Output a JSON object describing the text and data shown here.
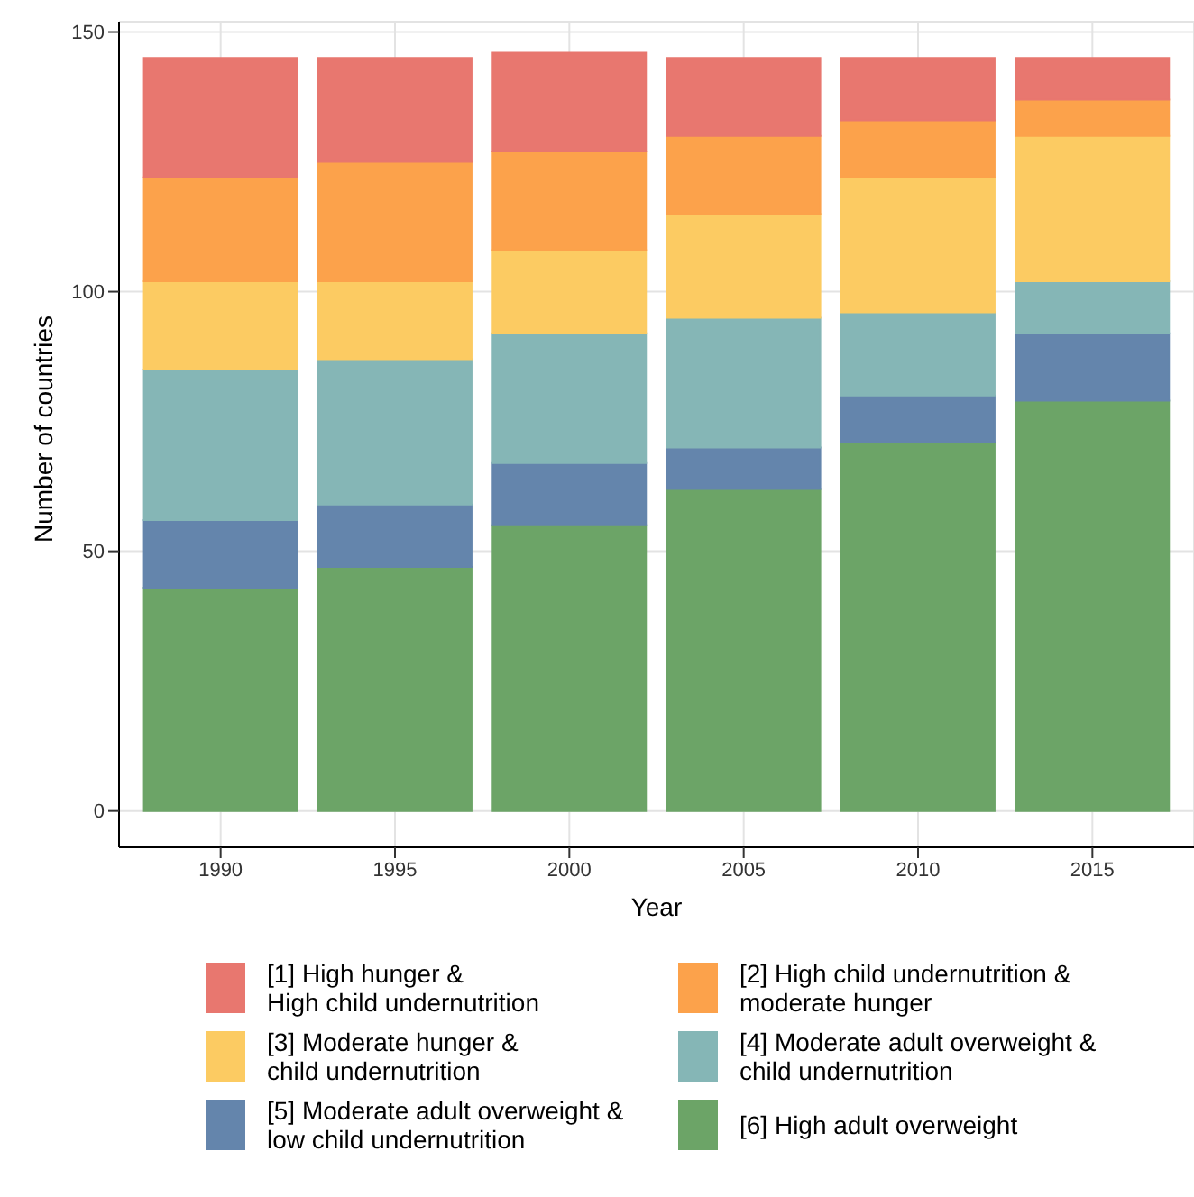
{
  "chart_data": {
    "type": "bar",
    "stacked": true,
    "xlabel": "Year",
    "ylabel": "Number of countries",
    "categories": [
      "1990",
      "1995",
      "2000",
      "2005",
      "2010",
      "2015"
    ],
    "series": [
      {
        "name": "[6] High adult overweight",
        "color": "#6ca467",
        "values": [
          43,
          47,
          55,
          62,
          71,
          79
        ]
      },
      {
        "name": "[5] Moderate adult overweight &\nlow child undernutrition",
        "color": "#6485ac",
        "values": [
          13,
          12,
          12,
          8,
          9,
          13
        ]
      },
      {
        "name": "[4] Moderate adult overweight &\nchild undernutrition",
        "color": "#85b6b6",
        "values": [
          29,
          28,
          25,
          25,
          16,
          10
        ]
      },
      {
        "name": "[3] Moderate hunger &\nchild undernutrition",
        "color": "#fccb62",
        "values": [
          17,
          15,
          16,
          20,
          26,
          28
        ]
      },
      {
        "name": "[2] High child undernutrition &\nmoderate hunger",
        "color": "#fca24b",
        "values": [
          20,
          23,
          19,
          15,
          11,
          7
        ]
      },
      {
        "name": "[1] High hunger &\nHigh child undernutrition",
        "color": "#e8776f",
        "values": [
          23,
          20,
          19,
          15,
          12,
          8
        ]
      }
    ],
    "ylim": [
      -7,
      152
    ],
    "yticks": [
      0,
      50,
      100,
      150
    ],
    "grid": true,
    "legend": "bottom"
  }
}
